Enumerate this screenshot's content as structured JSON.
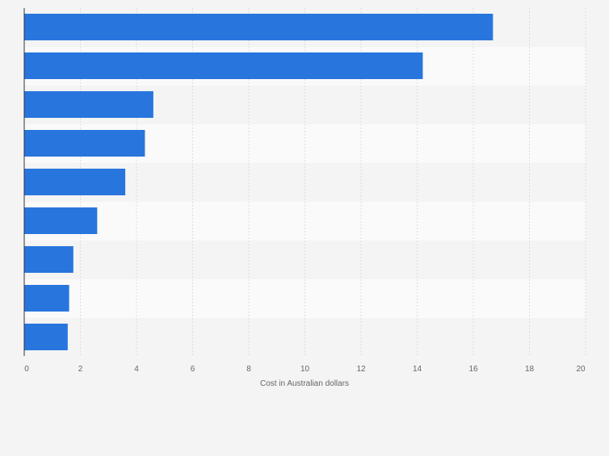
{
  "chart_data": {
    "type": "bar",
    "orientation": "horizontal",
    "categories": [
      "",
      "",
      "",
      "",
      "",
      "",
      "",
      "",
      ""
    ],
    "values": [
      16.7,
      14.2,
      4.6,
      4.3,
      3.6,
      2.6,
      1.75,
      1.6,
      1.55
    ],
    "xlabel": "Cost in Australian dollars",
    "xlim": [
      0,
      20
    ],
    "x_ticks": [
      "0",
      "2",
      "4",
      "6",
      "8",
      "10",
      "12",
      "14",
      "16",
      "18",
      "20"
    ],
    "grid": "vertical",
    "colors": {
      "bar": "#2876dd",
      "page_background": "#f4f4f4",
      "band_light": "#fafafa",
      "band_dark": "#f4f4f4",
      "grid": "#dddddd",
      "axis": "#333333",
      "tick_text": "#666666"
    }
  }
}
